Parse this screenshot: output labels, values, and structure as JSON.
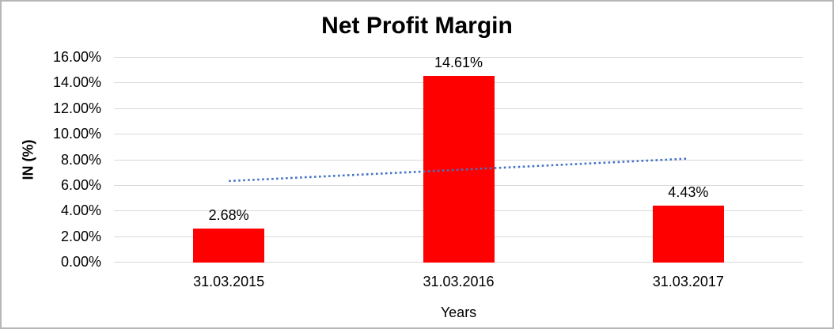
{
  "chart_data": {
    "type": "bar",
    "title": "Net Profit Margin",
    "categories": [
      "31.03.2015",
      "31.03.2016",
      "31.03.2017"
    ],
    "values": [
      2.68,
      14.61,
      4.43
    ],
    "data_labels": [
      "2.68%",
      "14.61%",
      "4.43%"
    ],
    "xlabel": "Years",
    "ylabel": "IN (%)",
    "ylim": [
      0,
      16
    ],
    "ytick_step": 2,
    "ytick_labels": [
      "0.00%",
      "2.00%",
      "4.00%",
      "6.00%",
      "8.00%",
      "10.00%",
      "12.00%",
      "14.00%",
      "16.00%"
    ],
    "grid": "horizontal",
    "legend": "none",
    "colors": {
      "bar": "#ff0000",
      "gridline": "#d9d9d9",
      "text": "#000000",
      "trendline": "#4472c4",
      "frame_border": "#b7b7b7"
    },
    "trendline": {
      "type": "linear",
      "style": "dotted",
      "color": "#4472c4",
      "start_value": 6.37,
      "end_value": 8.12
    }
  }
}
